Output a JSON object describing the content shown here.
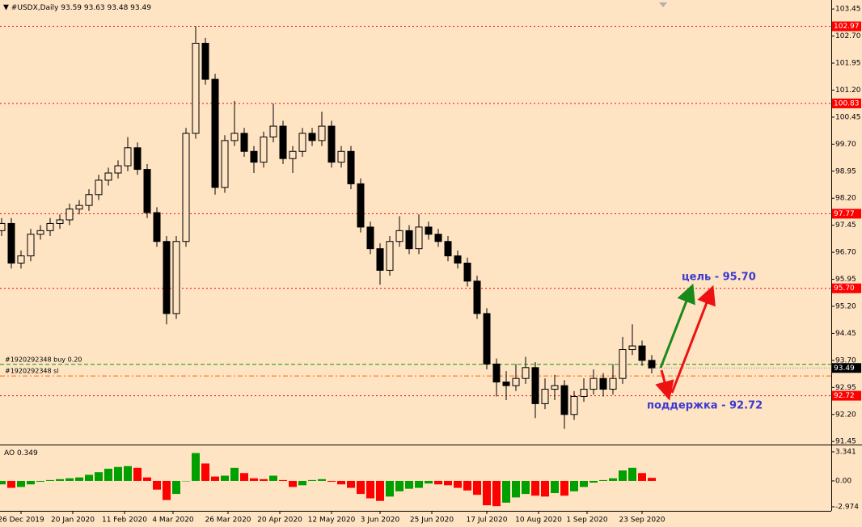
{
  "header": {
    "symbol": "#USDX,Daily",
    "ohlc": [
      93.59,
      93.63,
      93.48,
      93.49
    ]
  },
  "chart_data": [
    {
      "type": "candlestick",
      "x": [
        0,
        3,
        6,
        9,
        12,
        15,
        18,
        21,
        24,
        27,
        30,
        33,
        36,
        39,
        42,
        45,
        48,
        51,
        54,
        57,
        60,
        63,
        66,
        69,
        72,
        75,
        78,
        81,
        84,
        87,
        90,
        93,
        96,
        99,
        102,
        105,
        108,
        111,
        114,
        117,
        120,
        123,
        126,
        129,
        132,
        135,
        138,
        141,
        144,
        147,
        150,
        153,
        156,
        159,
        162,
        165,
        168,
        171,
        174,
        177,
        180,
        183,
        186,
        189,
        192,
        195,
        198,
        201
      ],
      "open": [
        97.3,
        97.5,
        96.4,
        96.6,
        97.2,
        97.3,
        97.5,
        97.6,
        97.9,
        98.0,
        98.3,
        98.7,
        98.9,
        99.1,
        99.6,
        99.0,
        97.8,
        97.0,
        95.0,
        97.0,
        100.0,
        102.5,
        101.5,
        98.5,
        99.8,
        100.0,
        99.5,
        99.2,
        99.9,
        100.2,
        99.3,
        99.5,
        100.0,
        99.8,
        100.2,
        99.2,
        99.5,
        98.6,
        97.4,
        96.8,
        96.2,
        97.0,
        97.3,
        96.8,
        97.4,
        97.2,
        97.0,
        96.6,
        96.4,
        95.9,
        95.0,
        93.6,
        93.1,
        93.0,
        93.2,
        93.5,
        92.5,
        92.9,
        93.0,
        92.2,
        92.7,
        92.9,
        93.2,
        92.9,
        93.2,
        94.0,
        94.1,
        93.7
      ],
      "high": [
        97.65,
        97.65,
        96.75,
        97.35,
        97.45,
        97.65,
        97.75,
        98.05,
        98.15,
        98.45,
        98.85,
        99.05,
        99.25,
        99.9,
        99.75,
        99.15,
        97.95,
        97.15,
        97.15,
        100.15,
        102.97,
        102.65,
        101.65,
        99.95,
        100.9,
        100.15,
        99.65,
        100.05,
        100.83,
        100.35,
        99.65,
        100.15,
        100.15,
        100.6,
        100.35,
        99.65,
        99.65,
        98.75,
        97.55,
        96.95,
        97.15,
        97.7,
        97.45,
        97.75,
        97.55,
        97.35,
        97.15,
        96.75,
        96.55,
        96.05,
        95.15,
        93.75,
        93.4,
        93.6,
        93.8,
        93.65,
        93.2,
        93.3,
        93.15,
        92.85,
        93.2,
        93.45,
        93.35,
        93.6,
        94.35,
        94.7,
        94.25,
        93.85
      ],
      "low": [
        97.15,
        96.25,
        96.25,
        96.45,
        97.05,
        97.15,
        97.35,
        97.45,
        97.75,
        97.85,
        98.15,
        98.55,
        98.75,
        98.95,
        98.85,
        97.65,
        96.85,
        94.7,
        94.85,
        96.85,
        99.85,
        101.35,
        98.3,
        98.35,
        99.65,
        99.35,
        98.9,
        99.05,
        99.75,
        99.15,
        98.9,
        99.35,
        99.65,
        99.65,
        99.05,
        99.05,
        98.45,
        97.25,
        96.65,
        95.8,
        96.05,
        96.85,
        96.65,
        96.65,
        97.05,
        96.85,
        96.45,
        96.25,
        95.75,
        94.85,
        93.45,
        92.7,
        92.6,
        92.85,
        93.05,
        92.1,
        92.35,
        92.6,
        91.8,
        92.05,
        92.55,
        92.75,
        92.7,
        92.75,
        93.05,
        93.85,
        93.55,
        93.34
      ],
      "close": [
        97.5,
        96.4,
        96.6,
        97.2,
        97.3,
        97.5,
        97.6,
        97.9,
        98.0,
        98.3,
        98.7,
        98.9,
        99.1,
        99.6,
        99.0,
        97.8,
        97.0,
        95.0,
        97.0,
        100.0,
        102.5,
        101.5,
        98.5,
        99.8,
        100.0,
        99.5,
        99.2,
        99.9,
        100.2,
        99.3,
        99.5,
        100.0,
        99.8,
        100.2,
        99.2,
        99.5,
        98.6,
        97.4,
        96.8,
        96.2,
        97.0,
        97.3,
        96.8,
        97.4,
        97.2,
        97.0,
        96.6,
        96.4,
        95.9,
        95.0,
        93.6,
        93.1,
        93.0,
        93.2,
        93.5,
        92.5,
        92.9,
        93.0,
        92.2,
        92.7,
        92.9,
        93.2,
        92.9,
        93.2,
        94.0,
        94.1,
        93.7,
        93.49
      ],
      "up_color": "#ffe4c4",
      "down_color": "#000000",
      "xlim": [
        -0.5,
        256.5
      ],
      "xticks": [
        {
          "value": 6,
          "label": "26 Dec 2019"
        },
        {
          "value": 22,
          "label": "20 Jan 2020"
        },
        {
          "value": 38,
          "label": "11 Feb 2020"
        },
        {
          "value": 53,
          "label": "4 Mar 2020"
        },
        {
          "value": 70,
          "label": "26 Mar 2020"
        },
        {
          "value": 86,
          "label": "20 Apr 2020"
        },
        {
          "value": 102,
          "label": "12 May 2020"
        },
        {
          "value": 117,
          "label": "3 Jun 2020"
        },
        {
          "value": 133,
          "label": "25 Jun 2020"
        },
        {
          "value": 150,
          "label": "17 Jul 2020"
        },
        {
          "value": 166,
          "label": "10 Aug 2020"
        },
        {
          "value": 181,
          "label": "1 Sep 2020"
        },
        {
          "value": 198,
          "label": "23 Sep 2020"
        }
      ],
      "ylim": [
        91.41,
        103.7
      ],
      "yticks": [
        103.45,
        {
          "value": 102.7,
          "label": "102.70"
        },
        101.95,
        {
          "value": 101.2,
          "label": "101.20"
        },
        100.45,
        {
          "value": 99.7,
          "label": "99.70"
        },
        98.95,
        {
          "value": 98.2,
          "label": "98.20"
        },
        97.45,
        {
          "value": 96.7,
          "label": "96.70"
        },
        95.95,
        {
          "value": 95.2,
          "label": "95.20"
        },
        94.45,
        {
          "value": 93.7,
          "label": "93.70"
        },
        92.95,
        {
          "value": 92.2,
          "label": "92.20"
        },
        91.45
      ],
      "levels": [
        102.97,
        100.83,
        97.77,
        {
          "value": 95.7,
          "label": "95.70"
        },
        92.72
      ],
      "level_color": "#ff0000",
      "current_price": 93.49,
      "orders": [
        {
          "label": "#1920292348 buy 0.20",
          "value": 93.59,
          "color": "#00a000"
        },
        {
          "label": "#1920292348 sl",
          "value": 93.27,
          "color": "#ff6600"
        }
      ],
      "annotations": [
        "цель - 95.70",
        "поддержка - 92.72"
      ]
    },
    {
      "type": "bar",
      "title": "AO",
      "last_value": 0.349,
      "x": [
        0,
        3,
        6,
        9,
        12,
        15,
        18,
        21,
        24,
        27,
        30,
        33,
        36,
        39,
        42,
        45,
        48,
        51,
        54,
        57,
        60,
        63,
        66,
        69,
        72,
        75,
        78,
        81,
        84,
        87,
        90,
        93,
        96,
        99,
        102,
        105,
        108,
        111,
        114,
        117,
        120,
        123,
        126,
        129,
        132,
        135,
        138,
        141,
        144,
        147,
        150,
        153,
        156,
        159,
        162,
        165,
        168,
        171,
        174,
        177,
        180,
        183,
        186,
        189,
        192,
        195,
        198,
        201
      ],
      "values": [
        -0.4,
        -0.8,
        -0.7,
        -0.4,
        -0.1,
        0.1,
        0.2,
        0.3,
        0.4,
        0.7,
        1.0,
        1.4,
        1.6,
        1.7,
        1.5,
        0.4,
        -1.0,
        -2.2,
        -1.5,
        0.0,
        3.2,
        2.0,
        0.5,
        0.6,
        1.5,
        0.9,
        0.3,
        0.2,
        0.6,
        0.1,
        -0.7,
        -0.5,
        0.1,
        0.2,
        -0.1,
        -0.4,
        -0.8,
        -1.5,
        -2.0,
        -2.3,
        -1.8,
        -1.2,
        -0.9,
        -0.8,
        -0.3,
        -0.4,
        -0.5,
        -0.8,
        -1.1,
        -1.6,
        -2.8,
        -2.9,
        -2.5,
        -1.9,
        -1.5,
        -1.7,
        -1.8,
        -1.4,
        -1.7,
        -1.2,
        -0.7,
        -0.2,
        0.1,
        0.3,
        1.2,
        1.5,
        0.9,
        0.349
      ],
      "up_color": "#00a000",
      "down_color": "#ff0000",
      "xlim": [
        -0.5,
        256.5
      ],
      "ylim": [
        -3.44,
        3.99
      ],
      "yticks": [
        3.341,
        {
          "value": 0,
          "label": "0.00"
        },
        -2.974
      ]
    }
  ]
}
